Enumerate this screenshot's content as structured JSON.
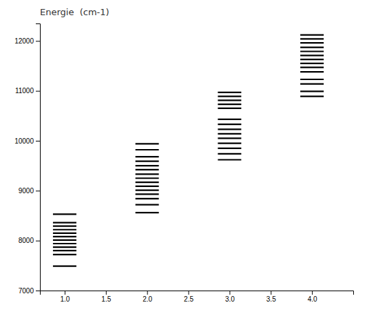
{
  "chart_data": {
    "type": "scatter",
    "title": "Energie  (cm-1)",
    "marker": "hline",
    "color": "#000000",
    "grid": false,
    "xlim": [
      0.7,
      4.5
    ],
    "ylim": [
      7000,
      12350
    ],
    "xticks": [
      {
        "value": 1.0,
        "label": "1.0"
      },
      {
        "value": 1.5,
        "label": "1.5"
      },
      {
        "value": 2.0,
        "label": "2.0"
      },
      {
        "value": 2.5,
        "label": "2.5"
      },
      {
        "value": 3.0,
        "label": "3.0"
      },
      {
        "value": 3.5,
        "label": "3.5"
      },
      {
        "value": 4.0,
        "label": "4.0"
      }
    ],
    "yticks": [
      7000,
      8000,
      9000,
      10000,
      11000,
      12000
    ],
    "series": [
      {
        "x": 1.0,
        "values": [
          7490,
          7720,
          7800,
          7870,
          7940,
          8010,
          8080,
          8150,
          8220,
          8290,
          8360,
          8530
        ]
      },
      {
        "x": 2.0,
        "values": [
          8560,
          8720,
          8840,
          8930,
          9010,
          9090,
          9170,
          9250,
          9330,
          9420,
          9500,
          9590,
          9680,
          9820,
          9940
        ]
      },
      {
        "x": 3.0,
        "values": [
          9620,
          9740,
          9850,
          9950,
          10050,
          10140,
          10230,
          10330,
          10430,
          10650,
          10730,
          10810,
          10890,
          10970
        ]
      },
      {
        "x": 4.0,
        "values": [
          10890,
          10990,
          11140,
          11230,
          11380,
          11470,
          11550,
          11630,
          11710,
          11790,
          11870,
          11960,
          12040,
          12120
        ]
      }
    ]
  }
}
